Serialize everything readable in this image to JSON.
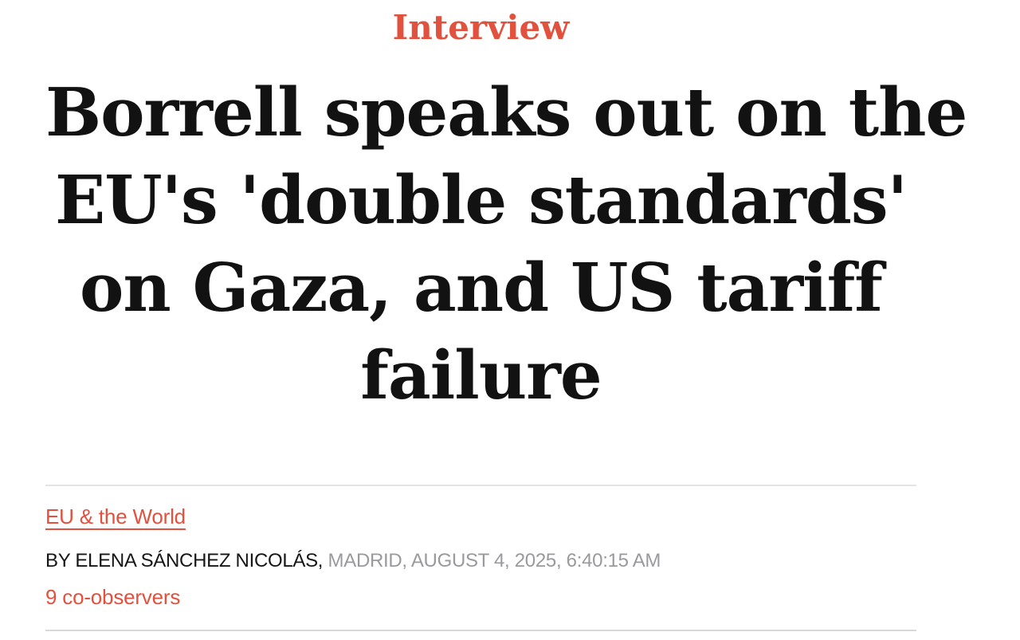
{
  "colors": {
    "accent": "#e2513d",
    "headline": "#121212",
    "byline_text": "#161616",
    "byline_muted": "#9a9a9e",
    "divider": "#e4e4e4",
    "background": "#ffffff"
  },
  "article": {
    "kicker": "Interview",
    "title": "Borrell speaks out on the EU's 'double standards' on Gaza, and US tariff failure",
    "title_lines": [
      "Borrell speaks out on the",
      "EU's 'double standards'",
      "on Gaza, and US tariff",
      "failure"
    ],
    "category_link": "EU & the World",
    "byline": {
      "author": "BY ELENA SÁNCHEZ NICOLÁS,",
      "meta": " MADRID, AUGUST 4, 2025, 6:40:15 AM"
    },
    "observers_link": "9 co-observers"
  }
}
